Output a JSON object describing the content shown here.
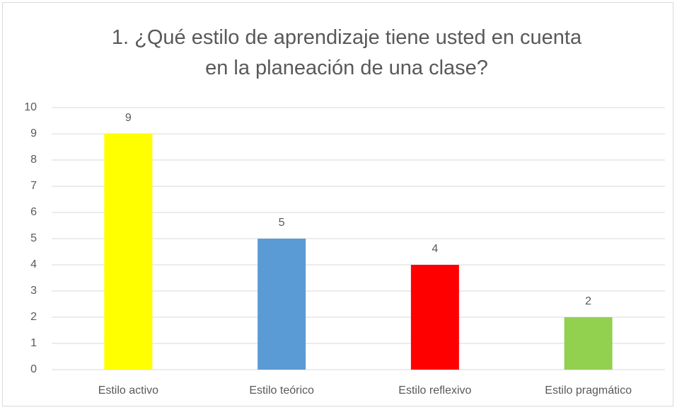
{
  "chart_data": {
    "type": "bar",
    "title": "1. ¿Qué estilo de aprendizaje tiene usted en cuenta en la planeación de una clase?",
    "categories": [
      "Estilo activo",
      "Estilo teórico",
      "Estilo reflexivo",
      "Estilo pragmático"
    ],
    "values": [
      9,
      5,
      4,
      2
    ],
    "colors": [
      "#ffff00",
      "#5b9bd5",
      "#ff0000",
      "#92d050"
    ],
    "ylim": [
      0,
      10
    ],
    "yticks": [
      0,
      1,
      2,
      3,
      4,
      5,
      6,
      7,
      8,
      9,
      10
    ],
    "grid": true
  }
}
